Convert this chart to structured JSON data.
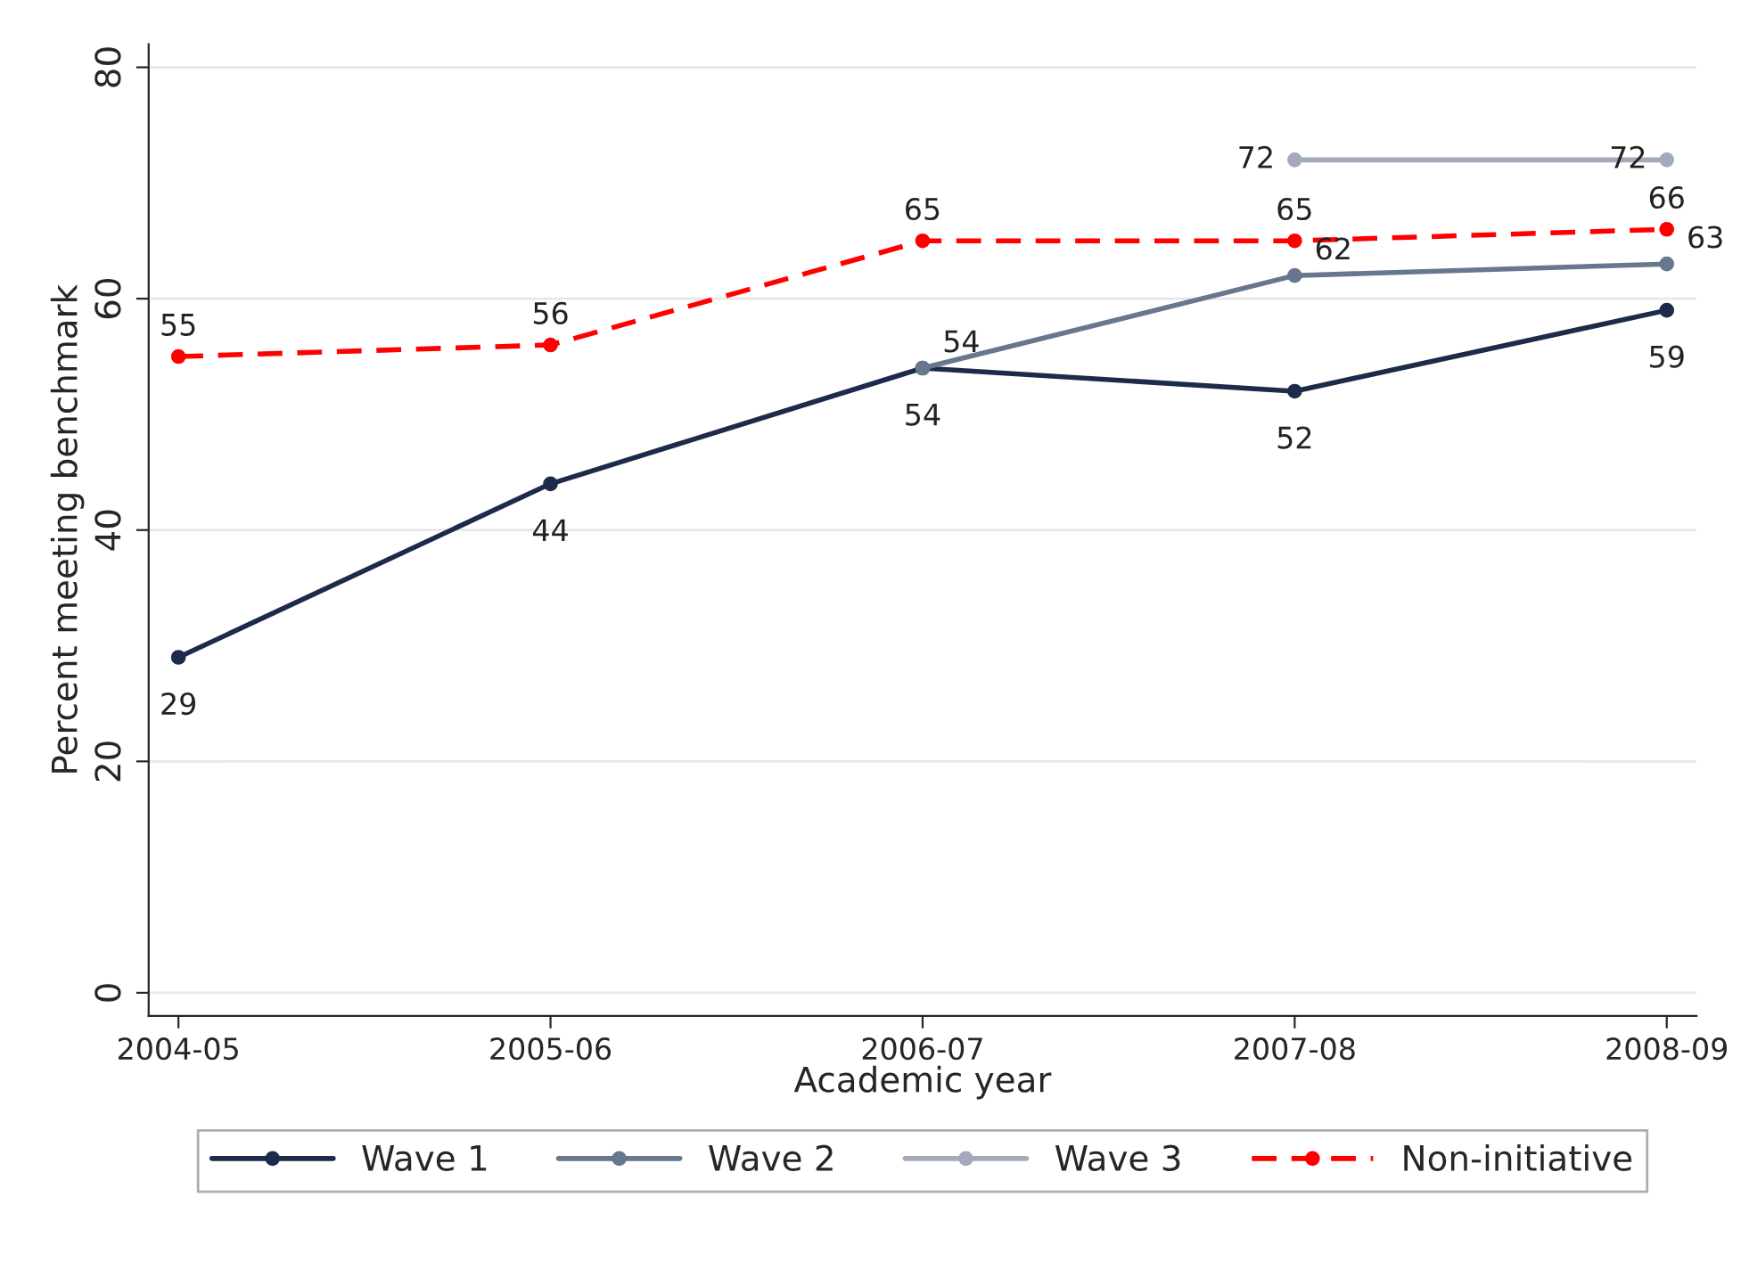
{
  "chart_data": {
    "type": "line",
    "xlabel": "Academic year",
    "ylabel": "Percent meeting benchmark",
    "categories": [
      "2004-05",
      "2005-06",
      "2006-07",
      "2007-08",
      "2008-09"
    ],
    "series": [
      {
        "name": "Wave 1",
        "color": "#1c2b4a",
        "values": [
          29,
          44,
          54,
          52,
          59
        ]
      },
      {
        "name": "Wave 2",
        "color": "#67778e",
        "values": [
          null,
          null,
          54,
          62,
          63
        ]
      },
      {
        "name": "Wave 3",
        "color": "#a3abba",
        "values": [
          null,
          null,
          null,
          72,
          72
        ]
      },
      {
        "name": "Non-initiative",
        "color": "#ff0000",
        "values": [
          55,
          56,
          65,
          65,
          66
        ],
        "line_style": "dashed"
      }
    ],
    "ylim": [
      -2,
      82
    ],
    "yticks": [
      0,
      20,
      40,
      60,
      80
    ],
    "grid": "y",
    "legend": "bottom",
    "marker": "circle",
    "line_style": "solid",
    "data_labels": true
  }
}
